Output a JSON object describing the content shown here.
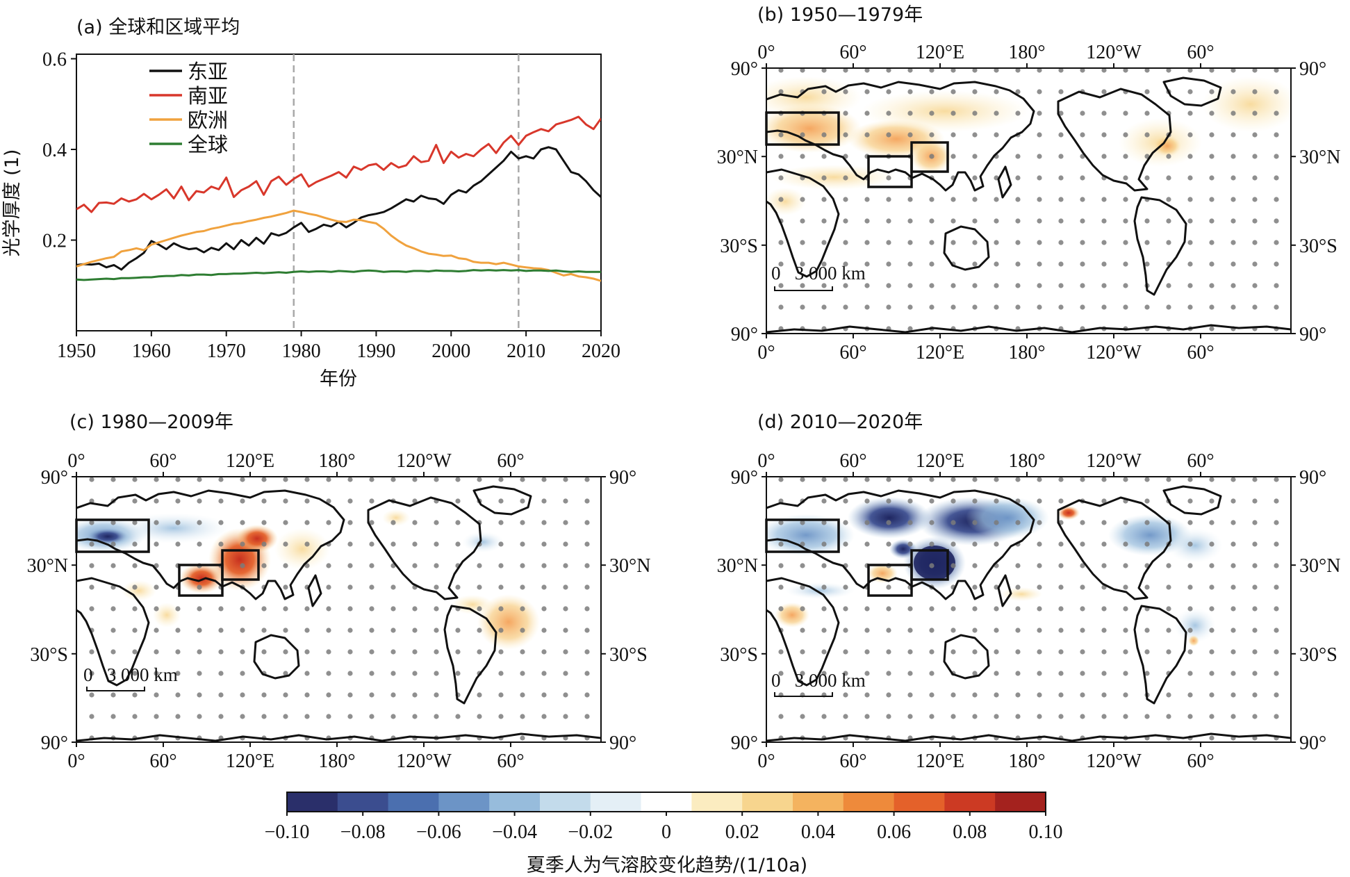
{
  "panel_a": {
    "title": "(a) 全球和区域平均",
    "ylabel": "光学厚度 (1)",
    "xlabel": "年份",
    "xticks": [
      "1950",
      "1960",
      "1970",
      "1980",
      "1990",
      "2000",
      "2010",
      "2020"
    ],
    "yticks": [
      "0.2",
      "0.4",
      "0.6"
    ],
    "legend": [
      "东亚",
      "南亚",
      "欧洲",
      "全球"
    ]
  },
  "maps": {
    "b_title": "(b) 1950—1979年",
    "c_title": "(c) 1980—2009年",
    "d_title": "(d) 2010—2020年",
    "lon_ticks": [
      "0°",
      "60°",
      "120°E",
      "180°",
      "120°W",
      "60°"
    ],
    "lat_ticks": [
      "90°",
      "30°N",
      "30°S",
      "90°"
    ],
    "scalebar": "0   3 000 km"
  },
  "colorbar": {
    "ticks": [
      "−0.10",
      "−0.08",
      "−0.06",
      "−0.04",
      "−0.02",
      "0",
      "0.02",
      "0.04",
      "0.06",
      "0.08",
      "0.10"
    ],
    "label": "夏季人为气溶胶变化趋势/(1/10a)",
    "colors": [
      "#2a2f6a",
      "#3b4d8f",
      "#4b6faf",
      "#6c94c6",
      "#97bcdc",
      "#c3dbeb",
      "#e4eff6",
      "#ffffff",
      "#fbecc0",
      "#f7d58e",
      "#f4b35f",
      "#ee8a3b",
      "#e4612a",
      "#cc3a23",
      "#a4221e"
    ]
  },
  "chart_data": {
    "type": "line",
    "title": "(a) 全球和区域平均",
    "xlabel": "年份",
    "ylabel": "光学厚度 (1)",
    "xlim": [
      1950,
      2020
    ],
    "ylim": [
      0.0,
      0.61
    ],
    "reference_lines_x": [
      1979,
      2009
    ],
    "x": [
      1950,
      1951,
      1952,
      1953,
      1954,
      1955,
      1956,
      1957,
      1958,
      1959,
      1960,
      1961,
      1962,
      1963,
      1964,
      1965,
      1966,
      1967,
      1968,
      1969,
      1970,
      1971,
      1972,
      1973,
      1974,
      1975,
      1976,
      1977,
      1978,
      1979,
      1980,
      1981,
      1982,
      1983,
      1984,
      1985,
      1986,
      1987,
      1988,
      1989,
      1990,
      1991,
      1992,
      1993,
      1994,
      1995,
      1996,
      1997,
      1998,
      1999,
      2000,
      2001,
      2002,
      2003,
      2004,
      2005,
      2006,
      2007,
      2008,
      2009,
      2010,
      2011,
      2012,
      2013,
      2014,
      2015,
      2016,
      2017,
      2018,
      2019,
      2020
    ],
    "series": [
      {
        "name": "东亚",
        "color": "#111111",
        "values": [
          0.145,
          0.147,
          0.146,
          0.148,
          0.14,
          0.145,
          0.135,
          0.15,
          0.16,
          0.172,
          0.198,
          0.19,
          0.18,
          0.193,
          0.185,
          0.18,
          0.182,
          0.173,
          0.183,
          0.178,
          0.193,
          0.18,
          0.2,
          0.188,
          0.205,
          0.192,
          0.215,
          0.21,
          0.216,
          0.228,
          0.238,
          0.218,
          0.225,
          0.234,
          0.23,
          0.24,
          0.228,
          0.238,
          0.25,
          0.255,
          0.258,
          0.262,
          0.27,
          0.28,
          0.29,
          0.285,
          0.298,
          0.292,
          0.29,
          0.28,
          0.3,
          0.31,
          0.305,
          0.32,
          0.33,
          0.345,
          0.36,
          0.375,
          0.395,
          0.38,
          0.385,
          0.38,
          0.4,
          0.405,
          0.4,
          0.375,
          0.35,
          0.345,
          0.33,
          0.31,
          0.295
        ]
      },
      {
        "name": "南亚",
        "color": "#d8372b",
        "values": [
          0.268,
          0.278,
          0.262,
          0.282,
          0.283,
          0.28,
          0.292,
          0.285,
          0.29,
          0.302,
          0.29,
          0.3,
          0.312,
          0.292,
          0.318,
          0.288,
          0.308,
          0.305,
          0.318,
          0.312,
          0.338,
          0.295,
          0.31,
          0.318,
          0.33,
          0.3,
          0.33,
          0.34,
          0.322,
          0.335,
          0.345,
          0.318,
          0.328,
          0.335,
          0.342,
          0.35,
          0.338,
          0.362,
          0.355,
          0.365,
          0.368,
          0.355,
          0.37,
          0.36,
          0.365,
          0.385,
          0.372,
          0.375,
          0.41,
          0.37,
          0.395,
          0.382,
          0.39,
          0.385,
          0.4,
          0.412,
          0.392,
          0.415,
          0.43,
          0.41,
          0.43,
          0.438,
          0.445,
          0.44,
          0.455,
          0.46,
          0.465,
          0.472,
          0.455,
          0.445,
          0.468
        ]
      },
      {
        "name": "欧洲",
        "color": "#f0a23e",
        "values": [
          0.142,
          0.147,
          0.152,
          0.156,
          0.16,
          0.163,
          0.175,
          0.178,
          0.182,
          0.178,
          0.19,
          0.195,
          0.2,
          0.205,
          0.21,
          0.214,
          0.218,
          0.22,
          0.225,
          0.228,
          0.232,
          0.236,
          0.238,
          0.242,
          0.245,
          0.249,
          0.252,
          0.256,
          0.26,
          0.265,
          0.262,
          0.258,
          0.255,
          0.25,
          0.245,
          0.241,
          0.24,
          0.245,
          0.244,
          0.24,
          0.237,
          0.225,
          0.21,
          0.198,
          0.188,
          0.182,
          0.175,
          0.17,
          0.168,
          0.165,
          0.166,
          0.16,
          0.158,
          0.152,
          0.15,
          0.15,
          0.147,
          0.15,
          0.146,
          0.142,
          0.14,
          0.138,
          0.137,
          0.134,
          0.128,
          0.122,
          0.125,
          0.12,
          0.118,
          0.115,
          0.11
        ]
      },
      {
        "name": "全球",
        "color": "#2e7d32",
        "values": [
          0.113,
          0.112,
          0.113,
          0.114,
          0.115,
          0.114,
          0.116,
          0.116,
          0.117,
          0.118,
          0.118,
          0.12,
          0.121,
          0.121,
          0.123,
          0.122,
          0.124,
          0.124,
          0.123,
          0.125,
          0.125,
          0.126,
          0.126,
          0.127,
          0.128,
          0.127,
          0.128,
          0.129,
          0.128,
          0.13,
          0.131,
          0.13,
          0.131,
          0.131,
          0.13,
          0.132,
          0.131,
          0.13,
          0.132,
          0.133,
          0.132,
          0.13,
          0.131,
          0.131,
          0.13,
          0.132,
          0.132,
          0.131,
          0.133,
          0.132,
          0.132,
          0.131,
          0.132,
          0.134,
          0.133,
          0.134,
          0.133,
          0.134,
          0.133,
          0.134,
          0.132,
          0.133,
          0.133,
          0.132,
          0.133,
          0.131,
          0.13,
          0.131,
          0.13,
          0.13,
          0.13
        ]
      }
    ]
  }
}
